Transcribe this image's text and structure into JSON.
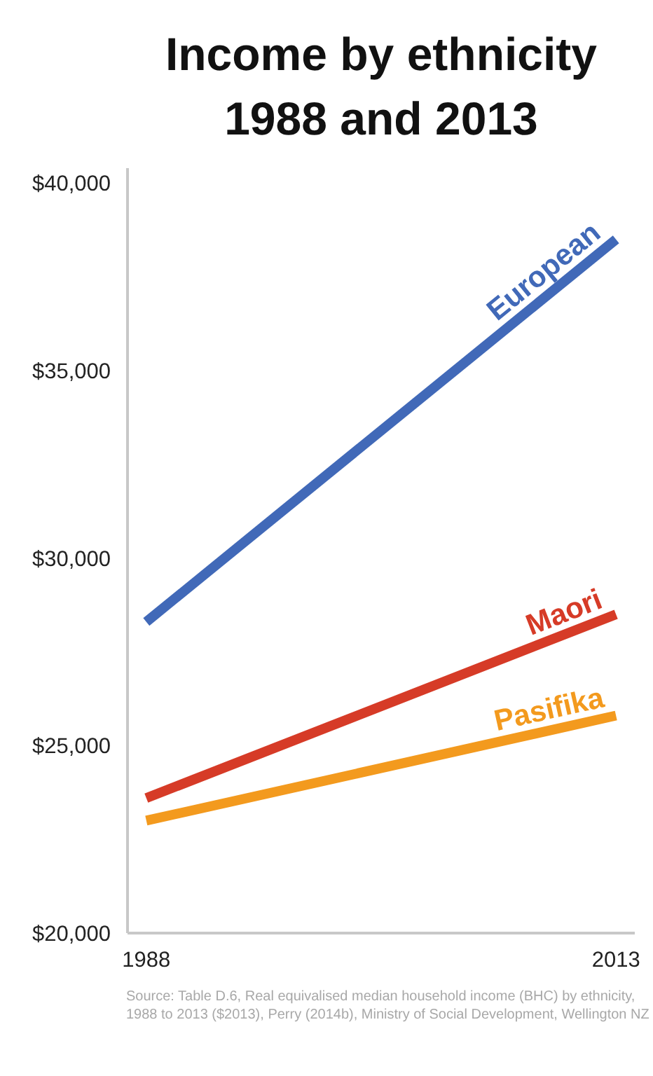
{
  "chart_data": {
    "type": "line",
    "title": "Income by ethnicity\n1988 and 2013",
    "x": [
      1988,
      2013
    ],
    "xlim": [
      1987,
      2014
    ],
    "xticks": [
      1988,
      2013
    ],
    "ylim": [
      20000,
      40400
    ],
    "yticks": [
      {
        "value": 20000,
        "label": "$20,000"
      },
      {
        "value": 25000,
        "label": "$25,000"
      },
      {
        "value": 30000,
        "label": "$30,000"
      },
      {
        "value": 35000,
        "label": "$35,000"
      },
      {
        "value": 40000,
        "label": "$40,000"
      }
    ],
    "series": [
      {
        "name": "European",
        "color": "#4169b8",
        "values": [
          28300,
          38500
        ]
      },
      {
        "name": "Maori",
        "color": "#d63b27",
        "values": [
          23600,
          28500
        ]
      },
      {
        "name": "Pasifika",
        "color": "#f39a1e",
        "values": [
          23000,
          25800
        ]
      }
    ],
    "annotations": [
      "Source: Table D.6, Real equivalised median household income (BHC) by ethnicity, 1988 to 2013 ($2013), Perry (2014b), Ministry of Social Development, Wellington NZ"
    ]
  }
}
